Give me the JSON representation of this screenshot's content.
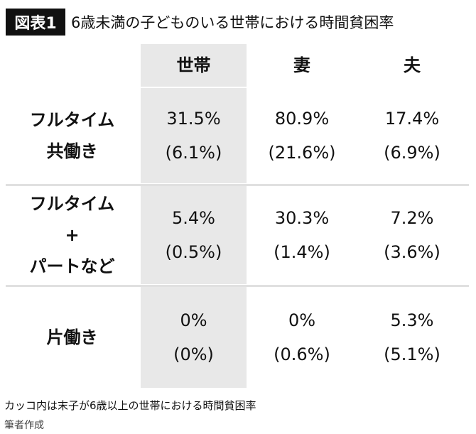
{
  "header": {
    "badge": "図表1",
    "title": "6歳未満の子どものいる世帯における時間貧困率"
  },
  "table": {
    "columns": [
      "世帯",
      "妻",
      "夫"
    ],
    "rows": [
      {
        "label": [
          "フルタイム",
          "共働き"
        ],
        "cells": [
          [
            "31.5%",
            "(6.1%)"
          ],
          [
            "80.9%",
            "(21.6%)"
          ],
          [
            "17.4%",
            "(6.9%)"
          ]
        ]
      },
      {
        "label": [
          "フルタイム",
          "+",
          "パートなど"
        ],
        "cells": [
          [
            "5.4%",
            "(0.5%)"
          ],
          [
            "30.3%",
            "(1.4%)"
          ],
          [
            "7.2%",
            "(3.6%)"
          ]
        ]
      },
      {
        "label": [
          "片働き"
        ],
        "cells": [
          [
            "0%",
            "(0%)"
          ],
          [
            "0%",
            "(0.6%)"
          ],
          [
            "5.3%",
            "(5.1%)"
          ]
        ]
      }
    ]
  },
  "notes": [
    "カッコ内は末子が6歳以上の世帯における時間貧困率",
    "筆者作成"
  ]
}
